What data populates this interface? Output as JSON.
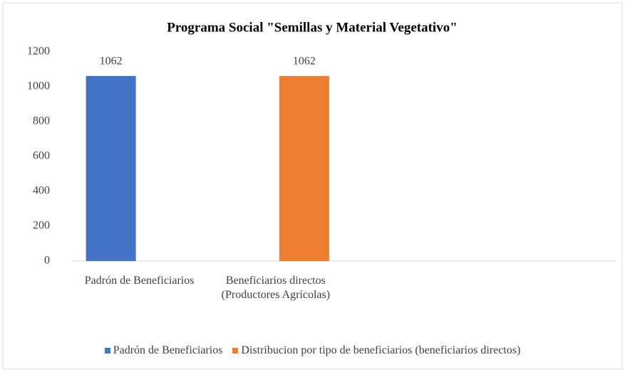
{
  "chart_data": {
    "type": "bar",
    "title": "Programa Social \"Semillas y Material Vegetativo\"",
    "categories": [
      "Padrón de Beneficiarios",
      "Beneficiarios directos (Productores Agrícolas)",
      null,
      null
    ],
    "series": [
      {
        "name": "Padrón de Beneficiarios",
        "color": "#4472c4",
        "values": [
          1062,
          null,
          null,
          null
        ]
      },
      {
        "name": "Distribucion por tipo de beneficiarios (beneficiarios directos)",
        "color": "#ed7d31",
        "values": [
          null,
          1062,
          null,
          null
        ]
      }
    ],
    "ylim": [
      0,
      1200
    ],
    "yticks": [
      0,
      200,
      400,
      600,
      800,
      1000,
      1200
    ],
    "grid": false,
    "legend": "bottom"
  }
}
